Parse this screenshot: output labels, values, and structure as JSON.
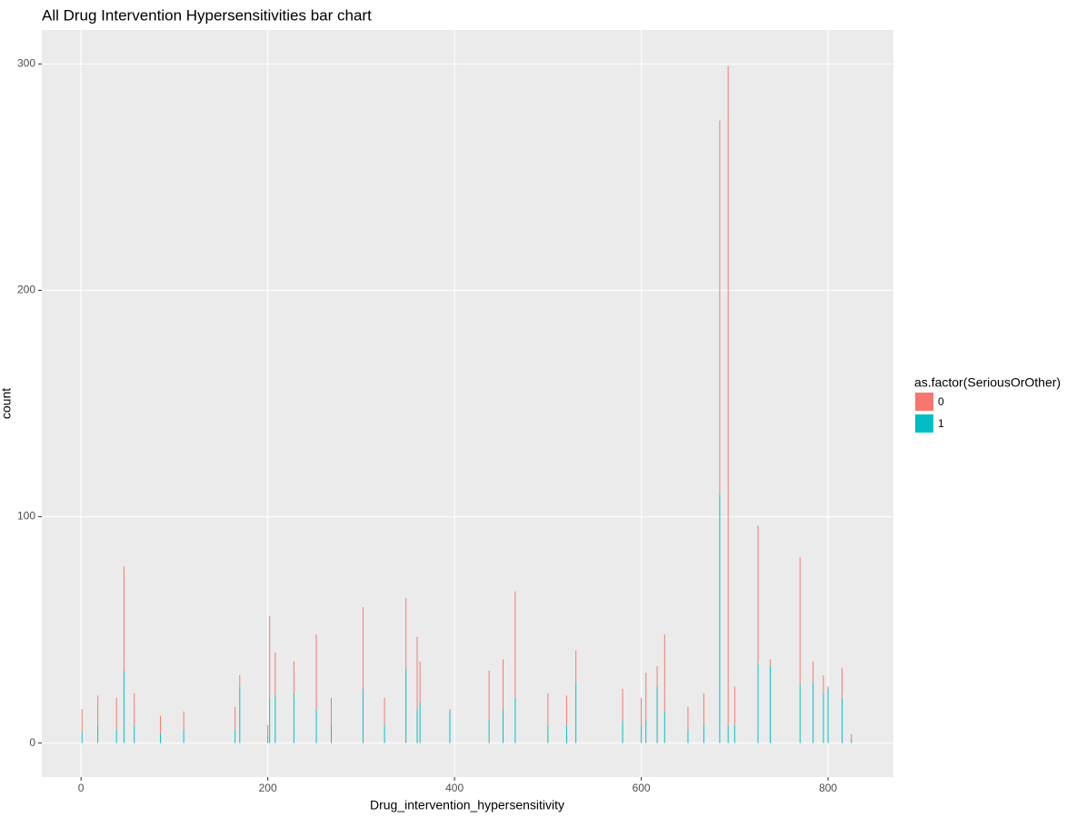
{
  "chart_data": {
    "type": "bar",
    "title": "All Drug Intervention Hypersensitivities bar chart",
    "x_label": "Drug_intervention_hypersensitivity",
    "y_label": "count",
    "legend_title": "as.factor(SeriousOrOther)",
    "x": [
      1,
      18,
      38,
      46,
      57,
      85,
      110,
      165,
      170,
      200,
      202,
      208,
      228,
      252,
      268,
      302,
      325,
      348,
      360,
      363,
      395,
      437,
      452,
      465,
      500,
      520,
      530,
      580,
      600,
      605,
      617,
      625,
      650,
      667,
      684,
      693,
      700,
      725,
      738,
      770,
      784,
      795,
      800,
      815,
      825
    ],
    "series": [
      {
        "name": "0",
        "color": "#F8766D",
        "values": [
          10,
          13,
          14,
          46,
          14,
          8,
          8,
          10,
          5,
          5,
          36,
          19,
          14,
          33,
          12,
          36,
          12,
          31,
          32,
          18,
          1,
          22,
          22,
          47,
          14,
          13,
          14,
          14,
          12,
          21,
          9,
          34,
          10,
          14,
          165,
          291,
          17,
          61,
          3,
          56,
          9,
          8,
          1,
          13,
          2
        ]
      },
      {
        "name": "1",
        "color": "#00BFC4",
        "values": [
          5,
          8,
          6,
          32,
          8,
          4,
          6,
          6,
          25,
          3,
          20,
          21,
          22,
          15,
          8,
          24,
          8,
          33,
          15,
          18,
          14,
          10,
          15,
          20,
          8,
          8,
          27,
          10,
          8,
          10,
          25,
          14,
          6,
          8,
          110,
          8,
          8,
          35,
          34,
          26,
          27,
          22,
          24,
          20,
          2
        ]
      }
    ],
    "xlim": [
      -42,
      870
    ],
    "xticks": [
      0,
      200,
      400,
      600,
      800
    ],
    "ylim": [
      -15,
      315
    ],
    "yticks": [
      0,
      100,
      200,
      300
    ],
    "grid": true,
    "legend_position": "right",
    "panel_color": "#EBEBEB"
  }
}
